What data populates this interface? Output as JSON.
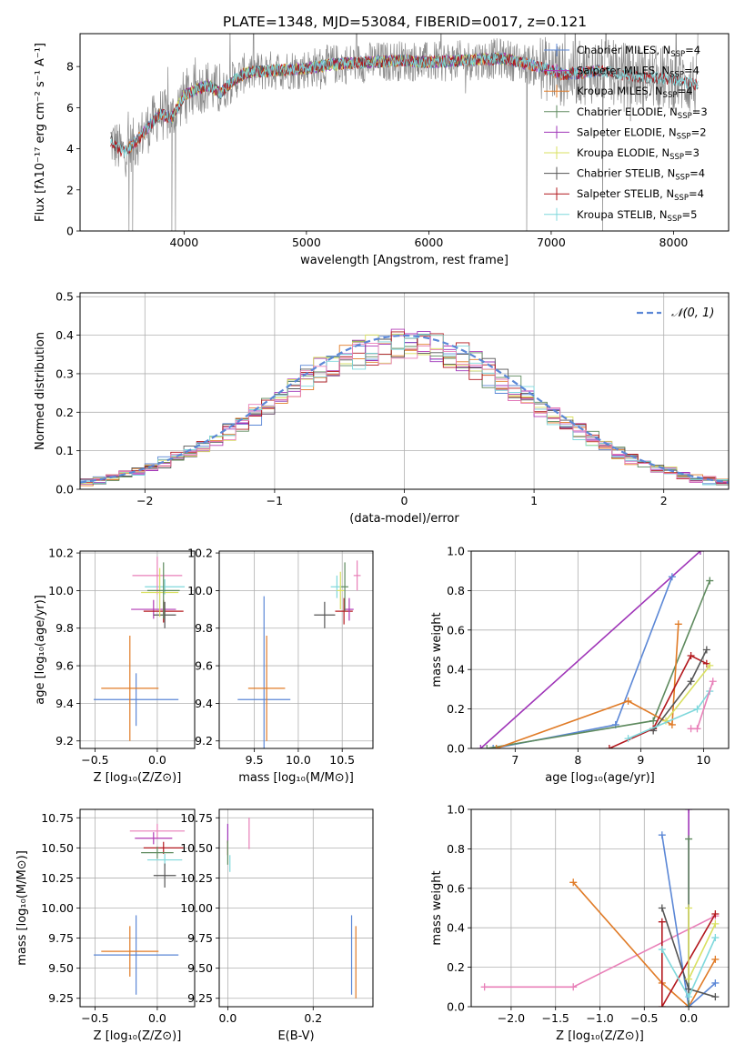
{
  "figure": {
    "title": "PLATE=1348, MJD=53084, FIBERID=0017, z=0.121"
  },
  "colors": {
    "Chabrier MILES": "#5b87d6",
    "Salpeter MILES": "#b23ab5",
    "Kroupa MILES": "#e07b27",
    "Chabrier ELODIE": "#5e8a5e",
    "Salpeter ELODIE": "#9f35b8",
    "Kroupa ELODIE": "#d9e060",
    "Chabrier STELIB": "#555555",
    "Salpeter STELIB": "#b3181e",
    "Kroupa STELIB": "#7fd8dc",
    "Data": "#888888",
    "N01": "#5b87d6",
    "Pink": "#e87fb8"
  },
  "chart_data": [
    {
      "id": "spectrum",
      "type": "line",
      "xlabel": "wavelength [Angstrom, rest frame]",
      "ylabel": "Flux [fλ10⁻¹⁷ erg cm⁻² s⁻¹ A⁻¹]",
      "xlim": [
        3150,
        8450
      ],
      "ylim": [
        0,
        9.6
      ],
      "xticks": [
        "4000",
        "5000",
        "6000",
        "7000",
        "8000"
      ],
      "yticks": [
        "0",
        "2",
        "4",
        "6",
        "8"
      ],
      "grid": false,
      "legend": "top-right",
      "legend_entries": [
        {
          "name": "Chabrier MILES",
          "nssp": "4"
        },
        {
          "name": "Salpeter MILES",
          "nssp": "4"
        },
        {
          "name": "Kroupa MILES",
          "nssp": "4"
        },
        {
          "name": "Chabrier ELODIE",
          "nssp": "3"
        },
        {
          "name": "Salpeter ELODIE",
          "nssp": "2"
        },
        {
          "name": "Kroupa ELODIE",
          "nssp": "3"
        },
        {
          "name": "Chabrier STELIB",
          "nssp": "4"
        },
        {
          "name": "Salpeter STELIB",
          "nssp": "4"
        },
        {
          "name": "Kroupa STELIB",
          "nssp": "5"
        }
      ],
      "continuum": {
        "x": [
          3400,
          3500,
          3600,
          3700,
          3800,
          3900,
          4000,
          4100,
          4200,
          4300,
          4400,
          4500,
          4700,
          5000,
          5200,
          5500,
          5800,
          6000,
          6300,
          6600,
          6900,
          7100,
          7400,
          7700,
          8000,
          8200
        ],
        "y": [
          4.4,
          3.8,
          4.3,
          5.0,
          5.7,
          5.5,
          6.6,
          6.9,
          7.1,
          6.7,
          7.3,
          7.7,
          7.8,
          7.9,
          8.1,
          8.2,
          8.3,
          8.2,
          8.3,
          8.4,
          8.0,
          7.6,
          7.8,
          7.5,
          7.4,
          7.1
        ]
      },
      "data_drops": [
        {
          "x": 3550,
          "to": 0
        },
        {
          "x": 3580,
          "to": 0
        },
        {
          "x": 3900,
          "to": 0
        },
        {
          "x": 3930,
          "to": 0
        },
        {
          "x": 6800,
          "to": 0
        },
        {
          "x": 7420,
          "to": 0
        }
      ]
    },
    {
      "id": "residuals",
      "type": "area",
      "xlabel": "(data-model)/error",
      "ylabel": "Normed distribution",
      "xlim": [
        -2.5,
        2.5
      ],
      "ylim": [
        0,
        0.51
      ],
      "xticks": [
        "−2",
        "−1",
        "0",
        "1",
        "2"
      ],
      "yticks": [
        "0.0",
        "0.1",
        "0.2",
        "0.3",
        "0.4",
        "0.5"
      ],
      "grid": true,
      "legend": "top-right",
      "legend_label": "𝒩(0, 1)",
      "bin_width": 0.1
    },
    {
      "id": "age-vs-Z",
      "type": "scatter",
      "xlabel": "Z [log₁₀(Z/Z⊙)]",
      "ylabel": "age  [log₁₀(age/yr)]",
      "xlim": [
        -0.62,
        0.3
      ],
      "ylim": [
        9.16,
        10.21
      ],
      "xticks": [
        "−0.5",
        "0.0"
      ],
      "yticks": [
        "9.2",
        "9.4",
        "9.6",
        "9.8",
        "10.0",
        "10.2"
      ],
      "grid": true,
      "points": [
        {
          "model": "Chabrier MILES",
          "x": -0.17,
          "y": 9.42,
          "xerr": 0.34,
          "yerr": 0.14
        },
        {
          "model": "Kroupa MILES",
          "x": -0.22,
          "y": 9.48,
          "xerr": 0.23,
          "yerr": 0.28
        },
        {
          "model": "Salpeter MILES",
          "x": -0.03,
          "y": 9.9,
          "xerr": 0.18,
          "yerr": 0.05
        },
        {
          "model": "Salpeter STELIB",
          "x": 0.05,
          "y": 9.89,
          "xerr": 0.16,
          "yerr": 0.06
        },
        {
          "model": "Chabrier STELIB",
          "x": 0.06,
          "y": 9.87,
          "xerr": 0.09,
          "yerr": 0.07
        },
        {
          "model": "Kroupa STELIB",
          "x": 0.06,
          "y": 10.02,
          "xerr": 0.16,
          "yerr": 0.04
        },
        {
          "model": "Pink",
          "x": 0.0,
          "y": 10.08,
          "xerr": 0.2,
          "yerr": 0.1
        },
        {
          "model": "Kroupa ELODIE",
          "x": 0.02,
          "y": 9.99,
          "xerr": 0.15,
          "yerr": 0.13
        },
        {
          "model": "Chabrier ELODIE",
          "x": 0.05,
          "y": 10.0,
          "xerr": 0.13,
          "yerr": 0.15
        }
      ]
    },
    {
      "id": "age-vs-mass",
      "type": "scatter",
      "xlabel": "mass [log₁₀(M/M⊙)]",
      "ylabel": "",
      "xlim": [
        9.1,
        10.85
      ],
      "ylim": [
        9.16,
        10.21
      ],
      "xticks": [
        "9.5",
        "10.0",
        "10.5"
      ],
      "yticks": [
        "9.2",
        "9.4",
        "9.6",
        "9.8",
        "10.0",
        "10.2"
      ],
      "grid": true,
      "points": [
        {
          "model": "Chabrier MILES",
          "x": 9.61,
          "y": 9.42,
          "xerr": 0.3,
          "yerr": 0.55
        },
        {
          "model": "Kroupa MILES",
          "x": 9.64,
          "y": 9.48,
          "xerr": 0.21,
          "yerr": 0.28
        },
        {
          "model": "Chabrier STELIB",
          "x": 10.3,
          "y": 9.87,
          "xerr": 0.12,
          "yerr": 0.07
        },
        {
          "model": "Salpeter STELIB",
          "x": 10.52,
          "y": 9.89,
          "xerr": 0.1,
          "yerr": 0.07
        },
        {
          "model": "Salpeter MILES",
          "x": 10.58,
          "y": 9.9,
          "xerr": 0.05,
          "yerr": 0.06
        },
        {
          "model": "Kroupa STELIB",
          "x": 10.44,
          "y": 10.02,
          "xerr": 0.07,
          "yerr": 0.06
        },
        {
          "model": "Pink",
          "x": 10.67,
          "y": 10.08,
          "xerr": 0.04,
          "yerr": 0.08
        },
        {
          "model": "Kroupa ELODIE",
          "x": 10.48,
          "y": 10.0,
          "xerr": 0.04,
          "yerr": 0.1
        },
        {
          "model": "Chabrier ELODIE",
          "x": 10.53,
          "y": 10.02,
          "xerr": 0.04,
          "yerr": 0.13
        }
      ]
    },
    {
      "id": "weight-vs-age",
      "type": "line",
      "xlabel": "age  [log₁₀(age/yr)]",
      "ylabel": "mass weight",
      "xlim": [
        6.3,
        10.4
      ],
      "ylim": [
        0,
        1.0
      ],
      "xticks": [
        "7",
        "8",
        "9",
        "10"
      ],
      "yticks": [
        "0.0",
        "0.2",
        "0.4",
        "0.6",
        "0.8",
        "1.0"
      ],
      "grid": true,
      "series": [
        {
          "model": "Salpeter ELODIE",
          "x": [
            6.45,
            9.95
          ],
          "y": [
            0.0,
            1.0
          ]
        },
        {
          "model": "Chabrier MILES",
          "x": [
            6.65,
            8.6,
            9.5
          ],
          "y": [
            0.0,
            0.12,
            0.87
          ]
        },
        {
          "model": "Chabrier ELODIE",
          "x": [
            6.55,
            9.2,
            10.1
          ],
          "y": [
            0.0,
            0.14,
            0.85
          ]
        },
        {
          "model": "Kroupa MILES",
          "x": [
            6.7,
            8.8,
            9.5,
            9.6
          ],
          "y": [
            0.0,
            0.24,
            0.12,
            0.63
          ]
        },
        {
          "model": "Salpeter STELIB",
          "x": [
            8.5,
            9.2,
            9.8,
            10.05
          ],
          "y": [
            0.0,
            0.1,
            0.47,
            0.43
          ]
        },
        {
          "model": "Chabrier STELIB",
          "x": [
            9.2,
            9.8,
            10.05
          ],
          "y": [
            0.09,
            0.34,
            0.5
          ]
        },
        {
          "model": "Kroupa ELODIE",
          "x": [
            9.4,
            10.1
          ],
          "y": [
            0.14,
            0.42
          ]
        },
        {
          "model": "Kroupa STELIB",
          "x": [
            8.8,
            9.9,
            10.1
          ],
          "y": [
            0.05,
            0.2,
            0.29
          ]
        },
        {
          "model": "Pink",
          "x": [
            9.8,
            9.9,
            10.15
          ],
          "y": [
            0.1,
            0.1,
            0.34
          ]
        }
      ]
    },
    {
      "id": "mass-vs-Z",
      "type": "scatter",
      "xlabel": "Z [log₁₀(Z/Z⊙)]",
      "ylabel": "mass [log₁₀(M/M⊙)]",
      "xlim": [
        -0.62,
        0.3
      ],
      "ylim": [
        9.18,
        10.82
      ],
      "xticks": [
        "−0.5",
        "0.0"
      ],
      "yticks": [
        "9.25",
        "9.50",
        "9.75",
        "10.00",
        "10.25",
        "10.50",
        "10.75"
      ],
      "grid": true,
      "points": [
        {
          "model": "Chabrier MILES",
          "x": -0.17,
          "y": 9.61,
          "xerr": 0.34,
          "yerr": 0.33
        },
        {
          "model": "Kroupa MILES",
          "x": -0.22,
          "y": 9.64,
          "xerr": 0.23,
          "yerr": 0.21
        },
        {
          "model": "Pink",
          "x": 0.0,
          "y": 10.64,
          "xerr": 0.22,
          "yerr": 0.06
        },
        {
          "model": "Salpeter MILES",
          "x": -0.03,
          "y": 10.58,
          "xerr": 0.15,
          "yerr": 0.05
        },
        {
          "model": "Salpeter STELIB",
          "x": 0.05,
          "y": 10.5,
          "xerr": 0.16,
          "yerr": 0.05
        },
        {
          "model": "Chabrier ELODIE",
          "x": 0.0,
          "y": 10.46,
          "xerr": 0.13,
          "yerr": 0.05
        },
        {
          "model": "Kroupa STELIB",
          "x": 0.06,
          "y": 10.4,
          "xerr": 0.14,
          "yerr": 0.05
        },
        {
          "model": "Chabrier STELIB",
          "x": 0.06,
          "y": 10.27,
          "xerr": 0.09,
          "yerr": 0.1
        }
      ]
    },
    {
      "id": "mass-vs-ebv",
      "type": "scatter",
      "xlabel": "E(B-V)",
      "ylabel": "",
      "xlim": [
        -0.02,
        0.34
      ],
      "ylim": [
        9.18,
        10.82
      ],
      "xticks": [
        "0.0",
        "0.2"
      ],
      "yticks": [
        "9.25",
        "9.50",
        "9.75",
        "10.00",
        "10.25",
        "10.50",
        "10.75"
      ],
      "grid": true,
      "points": [
        {
          "model": "Chabrier MILES",
          "x": 0.29,
          "y": 9.61,
          "xerr": 0,
          "yerr": 0.33
        },
        {
          "model": "Kroupa MILES",
          "x": 0.3,
          "y": 9.55,
          "xerr": 0,
          "yerr": 0.3
        },
        {
          "model": "Pink",
          "x": 0.05,
          "y": 10.62,
          "xerr": 0,
          "yerr": 0.13
        },
        {
          "model": "Salpeter ELODIE",
          "x": 0.0,
          "y": 10.62,
          "xerr": 0,
          "yerr": 0.08
        },
        {
          "model": "Salpeter STELIB",
          "x": 0.0,
          "y": 10.5,
          "xerr": 0,
          "yerr": 0.06
        },
        {
          "model": "Kroupa STELIB",
          "x": 0.005,
          "y": 10.37,
          "xerr": 0,
          "yerr": 0.07
        },
        {
          "model": "Chabrier ELODIE",
          "x": 0.0,
          "y": 10.46,
          "xerr": 0,
          "yerr": 0.1
        }
      ]
    },
    {
      "id": "weight-vs-Z",
      "type": "line",
      "xlabel": "Z [log₁₀(Z/Z⊙)]",
      "ylabel": "mass weight",
      "xlim": [
        -2.45,
        0.45
      ],
      "ylim": [
        0,
        1.0
      ],
      "xticks": [
        "−2.0",
        "−1.5",
        "−1.0",
        "−0.5",
        "0.0"
      ],
      "yticks": [
        "0.0",
        "0.2",
        "0.4",
        "0.6",
        "0.8",
        "1.0"
      ],
      "grid": true,
      "series": [
        {
          "model": "Pink",
          "x": [
            -2.3,
            -1.3,
            0.3
          ],
          "y": [
            0.1,
            0.1,
            0.46
          ]
        },
        {
          "model": "Kroupa MILES",
          "x": [
            -1.3,
            -0.3,
            0.0,
            0.3
          ],
          "y": [
            0.63,
            0.12,
            0.0,
            0.24
          ]
        },
        {
          "model": "Chabrier MILES",
          "x": [
            -0.3,
            0.0,
            0.3
          ],
          "y": [
            0.87,
            0.0,
            0.12
          ]
        },
        {
          "model": "Salpeter ELODIE",
          "x": [
            0.0,
            0.0
          ],
          "y": [
            1.0,
            0.0
          ]
        },
        {
          "model": "Chabrier ELODIE",
          "x": [
            0.0,
            0.0
          ],
          "y": [
            0.85,
            0.0
          ]
        },
        {
          "model": "Chabrier STELIB",
          "x": [
            -0.3,
            0.0,
            0.3
          ],
          "y": [
            0.5,
            0.09,
            0.05
          ]
        },
        {
          "model": "Salpeter STELIB",
          "x": [
            -0.3,
            -0.3,
            0.3
          ],
          "y": [
            0.43,
            0.0,
            0.47
          ]
        },
        {
          "model": "Kroupa ELODIE",
          "x": [
            0.0,
            0.0,
            0.3
          ],
          "y": [
            0.5,
            0.14,
            0.42
          ]
        },
        {
          "model": "Kroupa STELIB",
          "x": [
            -0.3,
            0.0,
            0.3
          ],
          "y": [
            0.29,
            0.05,
            0.35
          ]
        }
      ]
    }
  ]
}
